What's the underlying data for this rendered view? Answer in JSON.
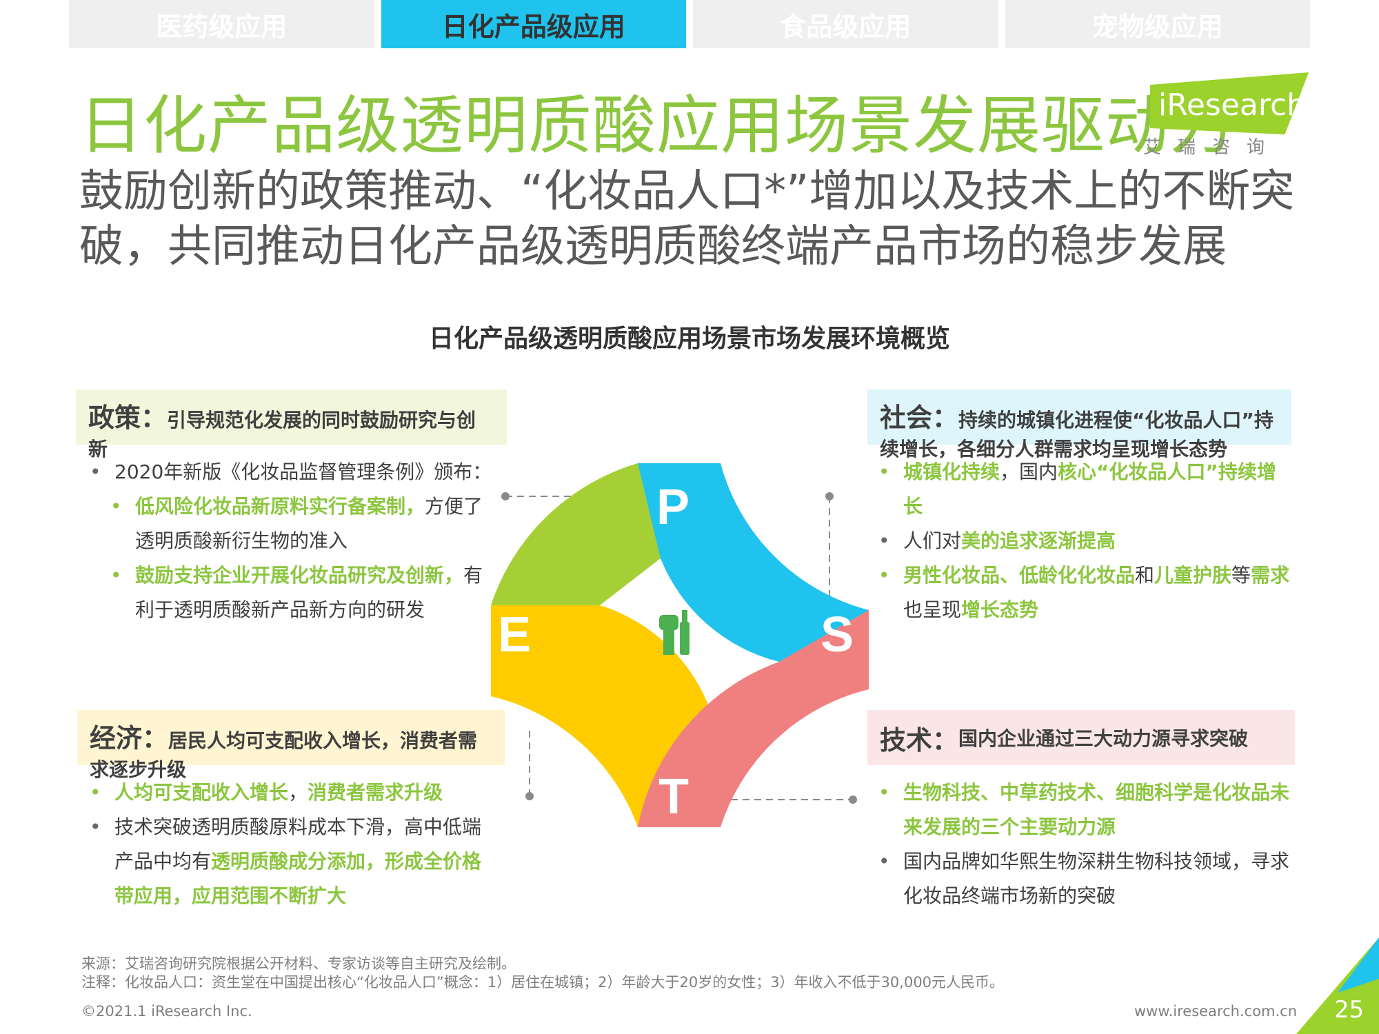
{
  "tabs": [
    "医药级应用",
    "日化产品级应用",
    "食品级应用",
    "宠物级应用"
  ],
  "title": "日化产品级透明质酸应用场景发展驱动力",
  "logo": {
    "text": "iResearch",
    "cn": "艾瑞咨询"
  },
  "subtitle": "鼓励创新的政策推动、“化妆品人口*”增加以及技术上的不断突破，共同推动日化产品级透明质酸终端产品市场的稳步发展",
  "chart_title": "日化产品级透明质酸应用场景市场发展环境概览",
  "letters": {
    "p": "P",
    "e": "E",
    "s": "S",
    "t": "T"
  },
  "policy": {
    "head": "政策：",
    "desc": "引导规范化发展的同时鼓励研究与创新",
    "b1": "2020年新版《化妆品监督管理条例》颁布：",
    "b2_hl": "低风险化妆品新原料实行备案制，",
    "b2_rest": "方便了透明质酸新衍生物的准入",
    "b3_hl": "鼓励支持企业开展化妆品研究及创新，",
    "b3_rest": "有利于透明质酸新产品新方向的研发"
  },
  "economy": {
    "head": "经济：",
    "desc": "居民人均可支配收入增长，消费者需求逐步升级",
    "b1_hl1": "人均可支配收入增长",
    "b1_mid": "，",
    "b1_hl2": "消费者需求升级",
    "b2_pre": "技术突破透明质酸原料成本下滑，高中低端产品中均有",
    "b2_hl": "透明质酸成分添加，形成全价格带应用，应用范围不断扩大"
  },
  "society": {
    "head": "社会：",
    "desc": "持续的城镇化进程使“化妆品人口”持续增长，各细分人群需求均呈现增长态势",
    "b1_hl1": "城镇化持续",
    "b1_mid": "，国内",
    "b1_hl2": "核心“化妆品人口”持续增长",
    "b2_pre": "人们对",
    "b2_hl": "美的追求逐渐提高",
    "b3_hl1": "男性化妆品、低龄化化妆品",
    "b3_m1": "和",
    "b3_hl2": "儿童护肤",
    "b3_m2": "等",
    "b3_hl3": "需求",
    "b3_m3": "也呈现",
    "b3_hl4": "增长态势"
  },
  "tech": {
    "head": "技术：",
    "desc": "国内企业通过三大动力源寻求突破",
    "b1_hl": "生物科技、中草药技术、细胞科学是化妆品未来发展的三个主要动力源",
    "b2": "国内品牌如华熙生物深耕生物科技领域，寻求化妆品终端市场新的突破"
  },
  "source": "来源：艾瑞咨询研究院根据公开材料、专家访谈等自主研究及绘制。",
  "note": "注释：化妆品人口：资生堂在中国提出核心“化妆品人口”概念：1）居住在城镇；2）年龄大于20岁的女性；3）年收入不低于30,000元人民币。",
  "copyright": "©2021.1 iResearch Inc.",
  "website": "www.iresearch.com.cn",
  "page": "25",
  "colors": {
    "green": "#8cc63f",
    "cyan": "#1fc3ee",
    "yellow": "#ffcc00",
    "pink": "#f08080",
    "lime": "#a5cf35"
  }
}
